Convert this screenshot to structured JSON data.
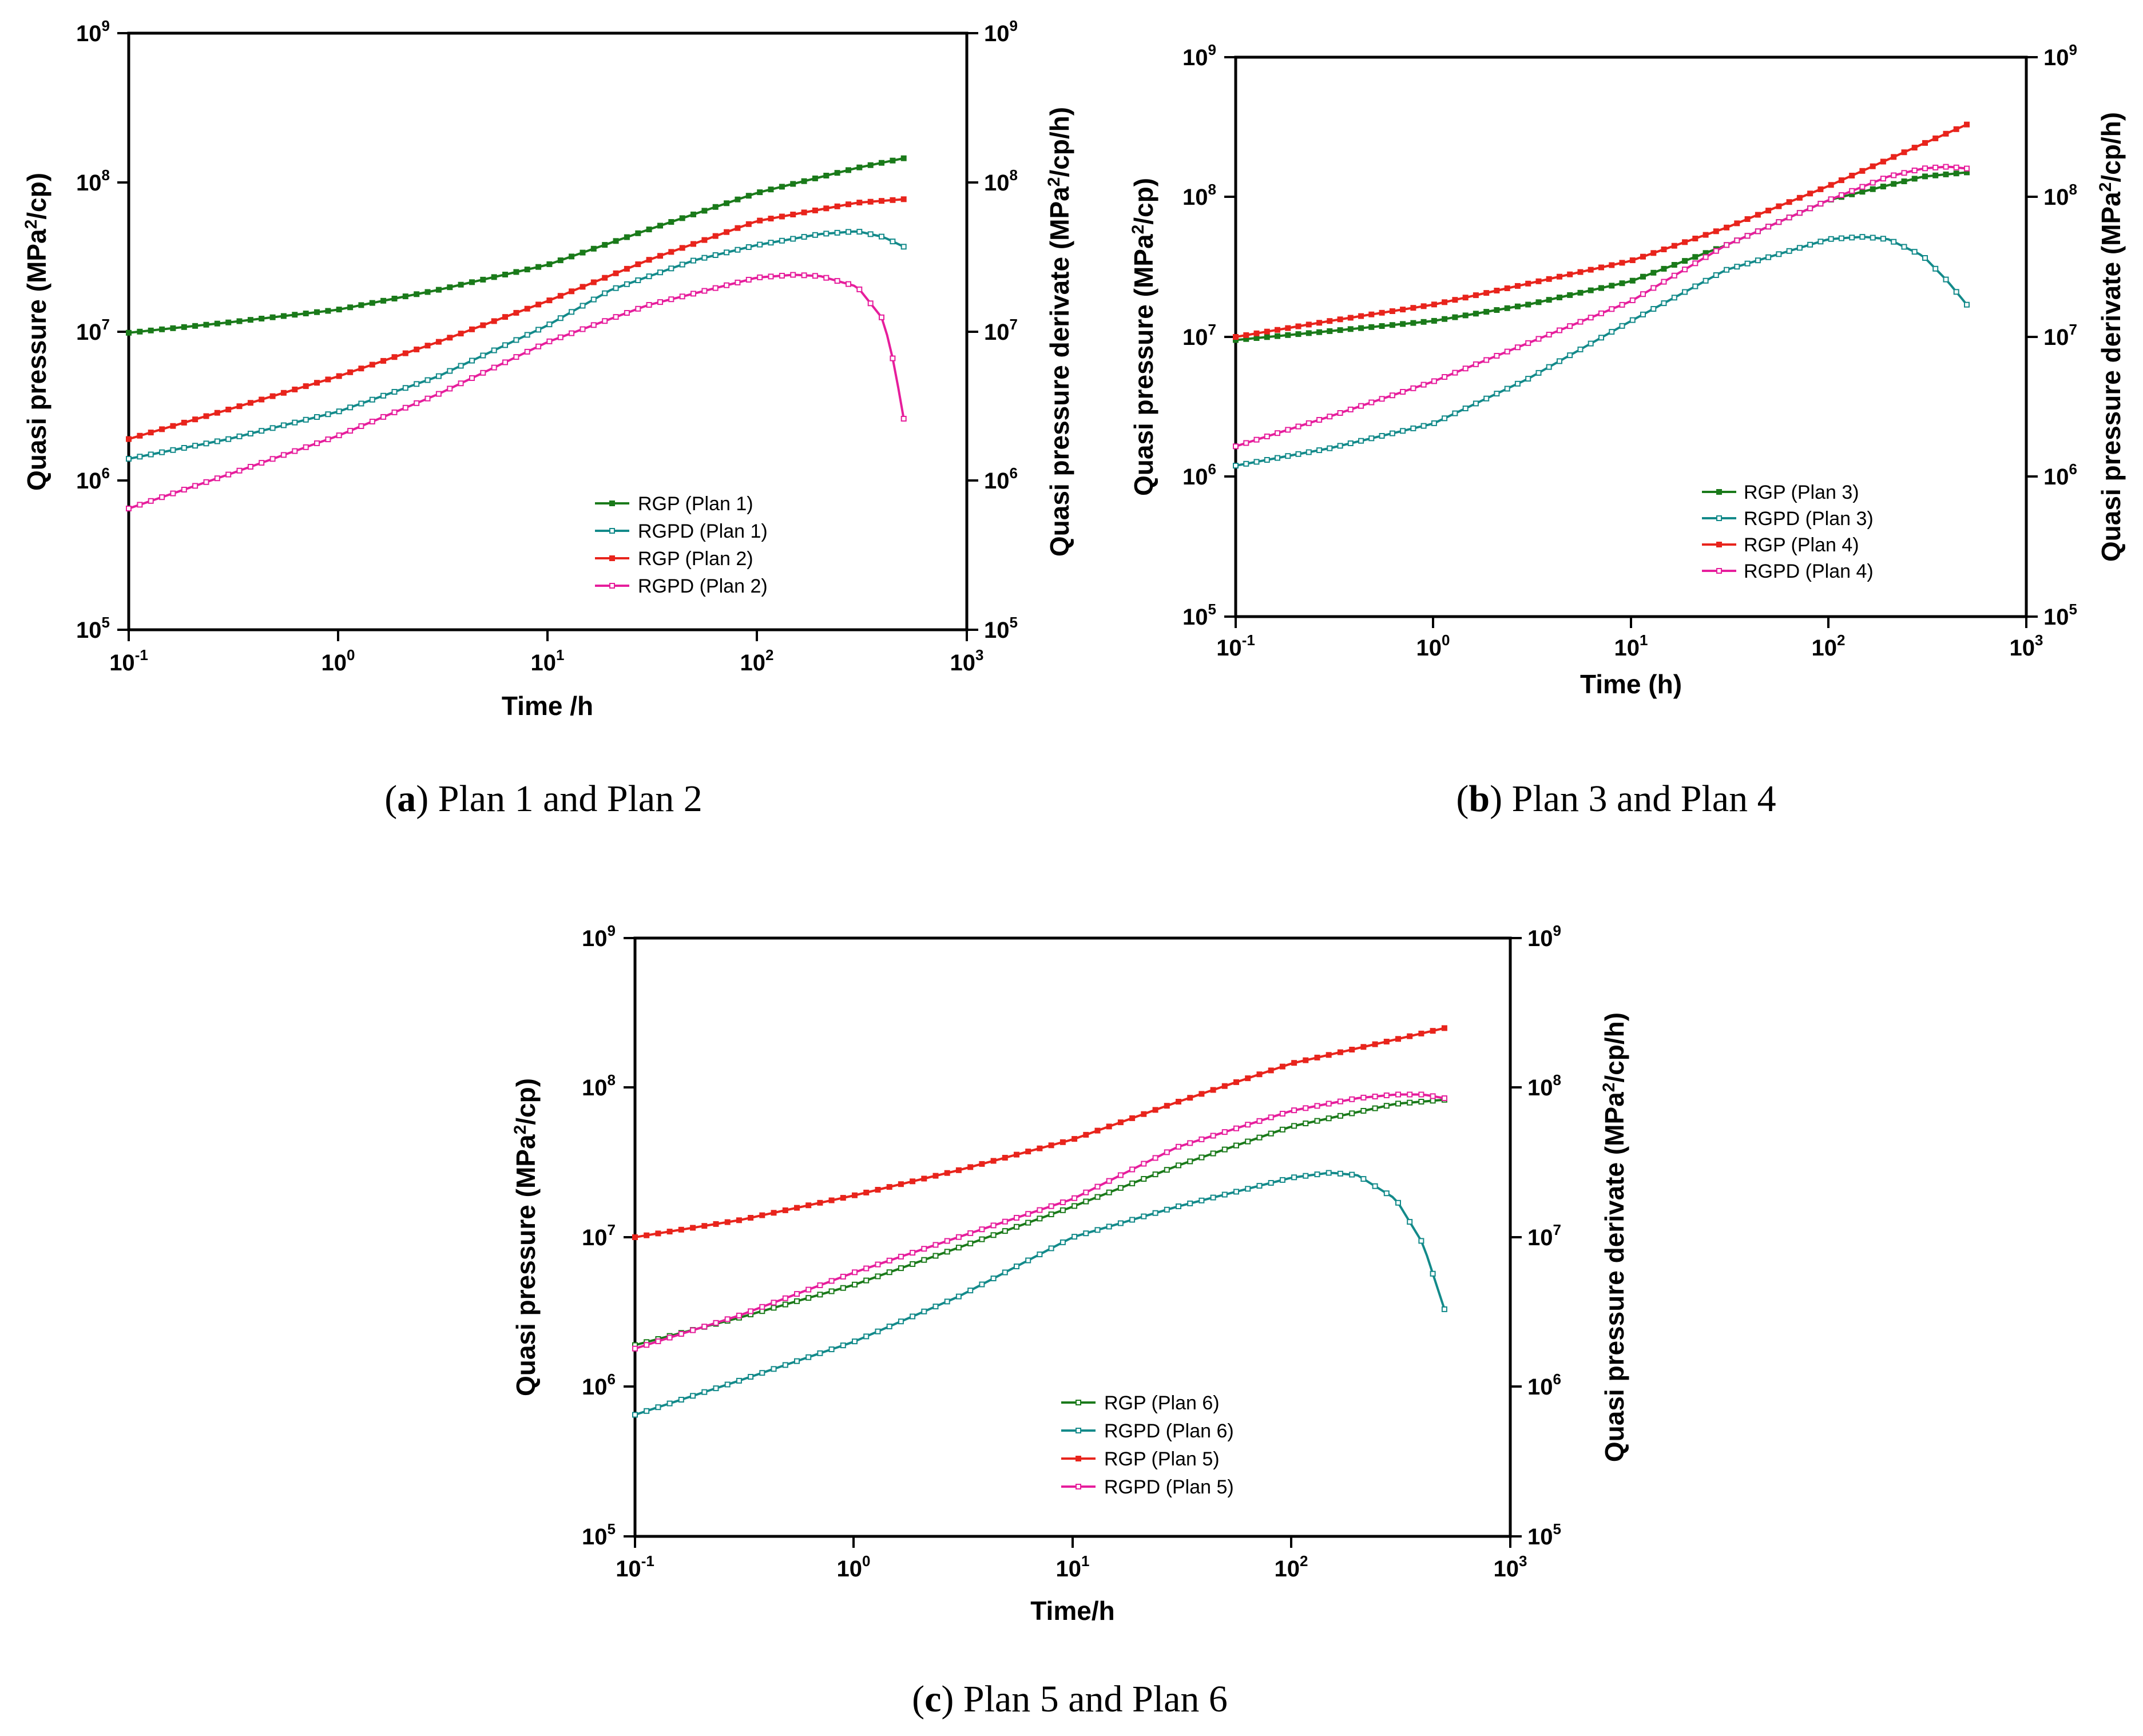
{
  "figure": {
    "panels": [
      {
        "id": "a",
        "caption_letter": "a",
        "caption_text": "Plan 1 and Plan 2",
        "chart_data": {
          "type": "line",
          "scale": "log-log",
          "xlabel": "Time /h",
          "ylabel_left": "Quasi pressure (MPa2/cp)",
          "ylabel_right": "Quasi pressure derivate (MPa2/cp/h)",
          "xlim": [
            0.1,
            1000
          ],
          "ylim": [
            100000,
            1000000000
          ],
          "x_ticks": [
            "10-1",
            "100",
            "101",
            "102",
            "103"
          ],
          "y_ticks": [
            "105",
            "106",
            "107",
            "108",
            "109"
          ],
          "legend_position": "bottom-right",
          "series": [
            {
              "name": "RGP (Plan 1)",
              "color": "#1a7a1a",
              "marker": "filled",
              "t": [
                0.1,
                0.3,
                1,
                3,
                10,
                30,
                100,
                300,
                500
              ],
              "v": [
                9800000,
                11500000,
                14000000,
                19000000,
                28000000,
                48000000,
                85000000,
                125000000,
                145000000
              ]
            },
            {
              "name": "RGPD (Plan 1)",
              "color": "#138a8a",
              "marker": "open",
              "t": [
                0.1,
                0.3,
                1,
                3,
                10,
                20,
                50,
                100,
                200,
                300,
                400,
                500
              ],
              "v": [
                1400000,
                1900000,
                2900000,
                5000000,
                11000000,
                19000000,
                30000000,
                38000000,
                45000000,
                47000000,
                43000000,
                37000000
              ]
            },
            {
              "name": "RGP (Plan 2)",
              "color": "#e8241c",
              "marker": "filled",
              "t": [
                0.1,
                0.3,
                1,
                3,
                10,
                30,
                100,
                300,
                500
              ],
              "v": [
                1900000,
                3000000,
                5000000,
                8500000,
                16000000,
                30000000,
                55000000,
                73000000,
                77000000
              ]
            },
            {
              "name": "RGPD (Plan 2)",
              "color": "#e61e9c",
              "marker": "open",
              "t": [
                0.1,
                0.3,
                1,
                3,
                10,
                30,
                100,
                150,
                200,
                300,
                400,
                450,
                500
              ],
              "v": [
                650000,
                1100000,
                2000000,
                3800000,
                8500000,
                15000000,
                23000000,
                24000000,
                23500000,
                20000000,
                12000000,
                6000000,
                2600000
              ]
            }
          ]
        }
      },
      {
        "id": "b",
        "caption_letter": "b",
        "caption_text": "Plan 3 and Plan 4",
        "chart_data": {
          "type": "line",
          "scale": "log-log",
          "xlabel": "Time (h)",
          "ylabel_left": "Quasi pressure (MPa2/cp)",
          "ylabel_right": "Quasi pressure derivate (MPa2/cp/h)",
          "xlim": [
            0.1,
            1000
          ],
          "ylim": [
            100000,
            1000000000
          ],
          "x_ticks": [
            "10-1",
            "100",
            "101",
            "102",
            "103"
          ],
          "y_ticks": [
            "105",
            "106",
            "107",
            "108",
            "109"
          ],
          "legend_position": "bottom-right",
          "series": [
            {
              "name": "RGP (Plan 3)",
              "color": "#1a7a1a",
              "marker": "filled",
              "t": [
                0.1,
                0.3,
                1,
                3,
                10,
                30,
                100,
                300,
                500
              ],
              "v": [
                9500000,
                11000000,
                13000000,
                17000000,
                25000000,
                45000000,
                95000000,
                140000000,
                150000000
              ]
            },
            {
              "name": "RGPD (Plan 3)",
              "color": "#138a8a",
              "marker": "open",
              "t": [
                0.1,
                0.3,
                1,
                3,
                10,
                30,
                100,
                150,
                200,
                300,
                400,
                500
              ],
              "v": [
                1200000,
                1600000,
                2400000,
                5000000,
                13000000,
                30000000,
                50000000,
                52000000,
                50000000,
                38000000,
                25000000,
                17000000
              ]
            },
            {
              "name": "RGP (Plan 4)",
              "color": "#e8241c",
              "marker": "filled",
              "t": [
                0.1,
                0.3,
                1,
                3,
                10,
                30,
                100,
                300,
                500
              ],
              "v": [
                10000000,
                13000000,
                17000000,
                24000000,
                35000000,
                60000000,
                120000000,
                240000000,
                330000000
              ]
            },
            {
              "name": "RGPD (Plan 4)",
              "color": "#e61e9c",
              "marker": "open",
              "t": [
                0.1,
                0.3,
                1,
                3,
                10,
                30,
                100,
                200,
                300,
                400,
                500
              ],
              "v": [
                1650000,
                2700000,
                4800000,
                9000000,
                18000000,
                45000000,
                95000000,
                140000000,
                160000000,
                165000000,
                160000000
              ]
            }
          ]
        }
      },
      {
        "id": "c",
        "caption_letter": "c",
        "caption_text": "Plan 5 and Plan 6",
        "chart_data": {
          "type": "line",
          "scale": "log-log",
          "xlabel": "Time/h",
          "ylabel_left": "Quasi pressure (MPa2/cp)",
          "ylabel_right": "Quasi pressure derivate (MPa2/cp/h)",
          "xlim": [
            0.1,
            1000
          ],
          "ylim": [
            100000,
            1000000000
          ],
          "x_ticks": [
            "10-1",
            "100",
            "101",
            "102",
            "103"
          ],
          "y_ticks": [
            "105",
            "106",
            "107",
            "108",
            "109"
          ],
          "legend_position": "bottom-center",
          "series": [
            {
              "name": "RGP (Plan 6)",
              "color": "#1a7a1a",
              "marker": "open",
              "t": [
                0.1,
                0.3,
                1,
                3,
                10,
                30,
                100,
                300,
                500
              ],
              "v": [
                1900000,
                2900000,
                4800000,
                8500000,
                16000000,
                30000000,
                55000000,
                78000000,
                83000000
              ]
            },
            {
              "name": "RGPD (Plan 6)",
              "color": "#138a8a",
              "marker": "open",
              "t": [
                0.1,
                0.3,
                1,
                3,
                10,
                30,
                100,
                150,
                200,
                300,
                400,
                500
              ],
              "v": [
                650000,
                1100000,
                2000000,
                4000000,
                10000000,
                16000000,
                25000000,
                27000000,
                26000000,
                18000000,
                9000000,
                3300000
              ]
            },
            {
              "name": "RGP (Plan 5)",
              "color": "#e8241c",
              "marker": "filled",
              "t": [
                0.1,
                0.3,
                1,
                3,
                10,
                30,
                100,
                300,
                500
              ],
              "v": [
                10000000,
                13000000,
                19000000,
                28000000,
                45000000,
                80000000,
                145000000,
                210000000,
                250000000
              ]
            },
            {
              "name": "RGPD (Plan 5)",
              "color": "#e61e9c",
              "marker": "open",
              "t": [
                0.1,
                0.3,
                1,
                3,
                10,
                30,
                100,
                200,
                300,
                400,
                500
              ],
              "v": [
                1800000,
                3000000,
                5800000,
                10000000,
                18000000,
                40000000,
                70000000,
                85000000,
                90000000,
                90000000,
                85000000
              ]
            }
          ]
        }
      }
    ]
  }
}
